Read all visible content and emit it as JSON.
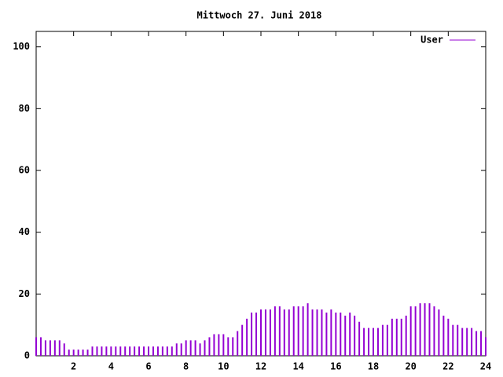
{
  "chart_data": {
    "type": "impulses",
    "title": "Mittwoch 27. Juni 2018",
    "x": [
      0,
      0.25,
      0.5,
      0.75,
      1,
      1.25,
      1.5,
      1.75,
      2,
      2.25,
      2.5,
      2.75,
      3,
      3.25,
      3.5,
      3.75,
      4,
      4.25,
      4.5,
      4.75,
      5,
      5.25,
      5.5,
      5.75,
      6,
      6.25,
      6.5,
      6.75,
      7,
      7.25,
      7.5,
      7.75,
      8,
      8.25,
      8.5,
      8.75,
      9,
      9.25,
      9.5,
      9.75,
      10,
      10.25,
      10.5,
      10.75,
      11,
      11.25,
      11.5,
      11.75,
      12,
      12.25,
      12.5,
      12.75,
      13,
      13.25,
      13.5,
      13.75,
      14,
      14.25,
      14.5,
      14.75,
      15,
      15.25,
      15.5,
      15.75,
      16,
      16.25,
      16.5,
      16.75,
      17,
      17.25,
      17.5,
      17.75,
      18,
      18.25,
      18.5,
      18.75,
      19,
      19.25,
      19.5,
      19.75,
      20,
      20.25,
      20.5,
      20.75,
      21,
      21.25,
      21.5,
      21.75,
      22,
      22.25,
      22.5,
      22.75,
      23,
      23.25,
      23.5,
      23.75,
      24
    ],
    "series": [
      {
        "name": "User",
        "color": "#9400d3",
        "values": [
          6,
          6,
          5,
          5,
          5,
          5,
          4,
          2,
          2,
          2,
          2,
          2,
          3,
          3,
          3,
          3,
          3,
          3,
          3,
          3,
          3,
          3,
          3,
          3,
          3,
          3,
          3,
          3,
          3,
          3,
          4,
          4,
          5,
          5,
          5,
          4,
          5,
          6,
          7,
          7,
          7,
          6,
          6,
          8,
          10,
          12,
          14,
          14,
          15,
          15,
          15,
          16,
          16,
          15,
          15,
          16,
          16,
          16,
          17,
          15,
          15,
          15,
          14,
          15,
          14,
          14,
          13,
          14,
          13,
          11,
          9,
          9,
          9,
          9,
          10,
          10,
          12,
          12,
          12,
          13,
          16,
          16,
          17,
          17,
          17,
          16,
          15,
          13,
          12,
          10,
          10,
          9,
          9,
          9,
          8,
          8,
          6
        ]
      }
    ],
    "xlim": [
      0,
      24
    ],
    "xticks": [
      2,
      4,
      6,
      8,
      10,
      12,
      14,
      16,
      18,
      20,
      22,
      24
    ],
    "ylim": [
      0,
      105
    ],
    "yticks": [
      0,
      20,
      40,
      60,
      80,
      100
    ],
    "legend": "top-right"
  }
}
